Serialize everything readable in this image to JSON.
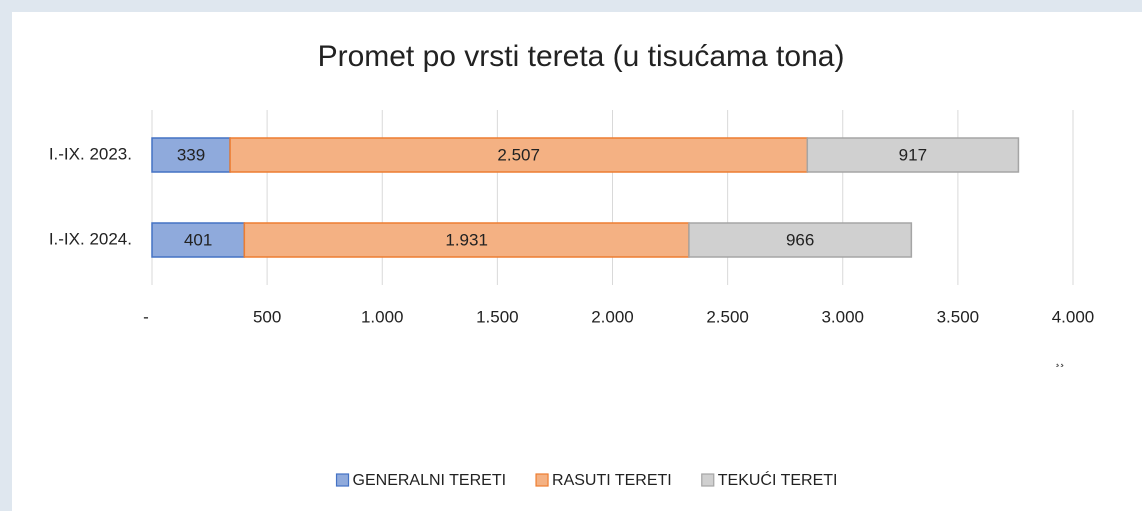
{
  "chart_data": {
    "type": "bar",
    "orientation": "horizontal",
    "stacked": true,
    "title": "Promet po vrsti tereta (u tisućama tona)",
    "categories": [
      "I.-IX. 2023.",
      "I.-IX. 2024."
    ],
    "series": [
      {
        "name": "GENERALNI TERETI",
        "color": "#8faadc",
        "edge_color": "#4472c4",
        "values": [
          339,
          401
        ]
      },
      {
        "name": "RASUTI TERETI",
        "color": "#f4b183",
        "edge_color": "#ed7d31",
        "values": [
          2507,
          1931
        ],
        "value_labels": [
          "2.507",
          "1.931"
        ]
      },
      {
        "name": "TEKUĆI TERETI",
        "color": "#d0d0d0",
        "edge_color": "#a5a5a5",
        "values": [
          917,
          966
        ]
      }
    ],
    "xlim": [
      0,
      4000
    ],
    "xticks": [
      {
        "value": 0,
        "label": "-"
      },
      500,
      {
        "value": 1000,
        "label": "1.000"
      },
      {
        "value": 1500,
        "label": "1.500"
      },
      {
        "value": 2000,
        "label": "2.000"
      },
      {
        "value": 2500,
        "label": "2.500"
      },
      {
        "value": 3000,
        "label": "3.000"
      },
      {
        "value": 3500,
        "label": "3.500"
      },
      {
        "value": 4000,
        "label": "4.000"
      }
    ],
    "grid": true,
    "legend": "bottom",
    "annotation": "¸¸"
  }
}
